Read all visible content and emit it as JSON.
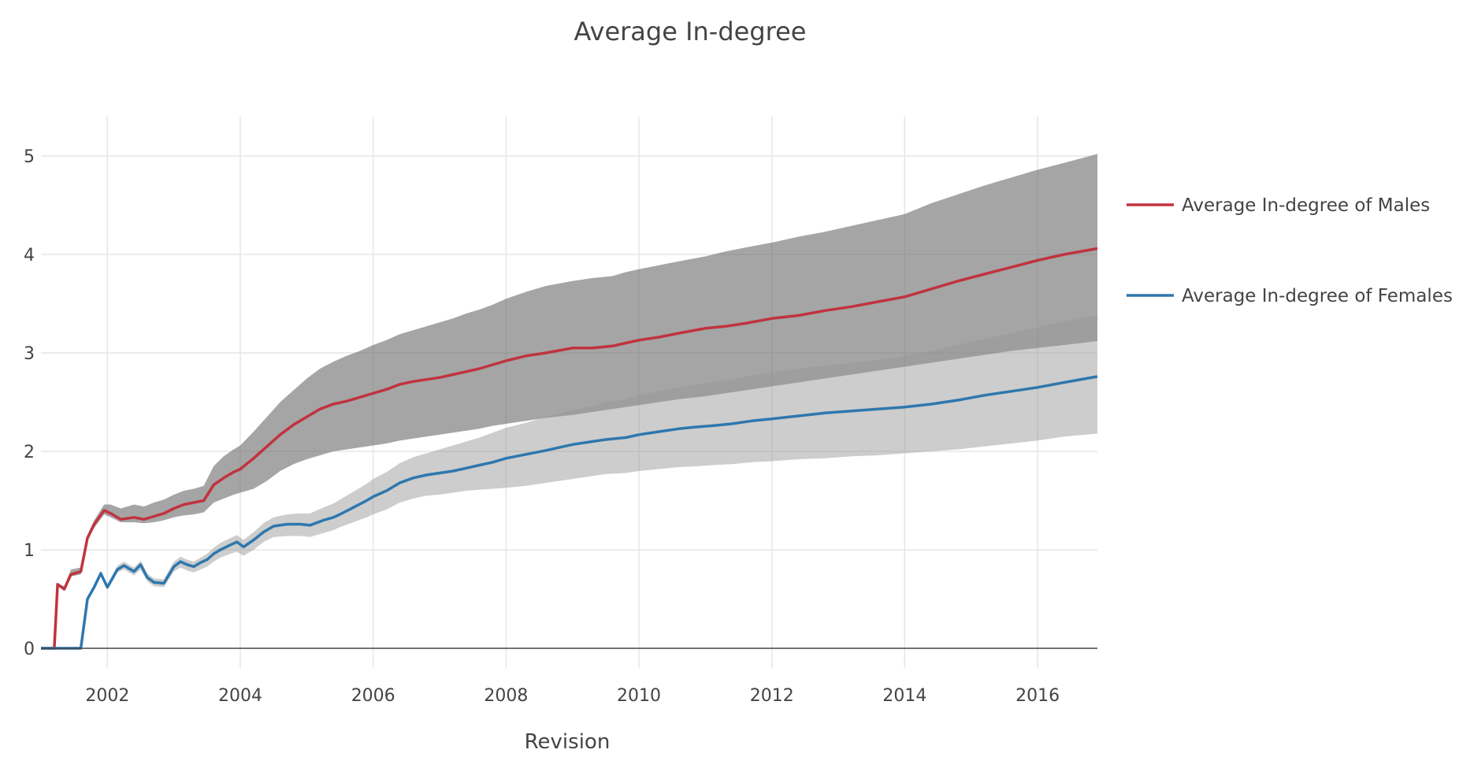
{
  "chart_data": {
    "type": "line",
    "title": "Average In-degree",
    "xlabel": "Revision",
    "ylabel": "",
    "xlim": [
      2001.0,
      2016.9
    ],
    "ylim": [
      -0.2,
      5.4
    ],
    "x_ticks": [
      2002,
      2004,
      2006,
      2008,
      2010,
      2012,
      2014,
      2016
    ],
    "y_ticks": [
      0,
      1,
      2,
      3,
      4,
      5
    ],
    "grid": true,
    "legend_position": "right",
    "series": [
      {
        "name": "Average In-degree of Males",
        "color": "#c0333f",
        "x": [
          2001.0,
          2001.2,
          2001.25,
          2001.35,
          2001.45,
          2001.6,
          2001.7,
          2001.8,
          2001.95,
          2002.05,
          2002.2,
          2002.4,
          2002.55,
          2002.7,
          2002.85,
          2003.0,
          2003.15,
          2003.3,
          2003.45,
          2003.6,
          2003.75,
          2003.9,
          2004.0,
          2004.2,
          2004.4,
          2004.6,
          2004.8,
          2005.0,
          2005.2,
          2005.4,
          2005.6,
          2005.8,
          2006.0,
          2006.2,
          2006.4,
          2006.6,
          2006.8,
          2007.0,
          2007.2,
          2007.4,
          2007.6,
          2007.8,
          2008.0,
          2008.3,
          2008.6,
          2009.0,
          2009.3,
          2009.6,
          2009.8,
          2010.0,
          2010.3,
          2010.6,
          2011.0,
          2011.3,
          2011.6,
          2012.0,
          2012.4,
          2012.8,
          2013.2,
          2013.6,
          2014.0,
          2014.4,
          2014.8,
          2015.2,
          2015.6,
          2016.0,
          2016.4,
          2016.9
        ],
        "values": [
          0.0,
          0.0,
          0.65,
          0.6,
          0.75,
          0.78,
          1.12,
          1.26,
          1.4,
          1.37,
          1.31,
          1.33,
          1.31,
          1.34,
          1.37,
          1.42,
          1.46,
          1.48,
          1.5,
          1.66,
          1.73,
          1.79,
          1.82,
          1.93,
          2.05,
          2.17,
          2.27,
          2.35,
          2.43,
          2.48,
          2.51,
          2.55,
          2.59,
          2.63,
          2.68,
          2.71,
          2.73,
          2.75,
          2.78,
          2.81,
          2.84,
          2.88,
          2.92,
          2.97,
          3.0,
          3.05,
          3.05,
          3.07,
          3.1,
          3.13,
          3.16,
          3.2,
          3.25,
          3.27,
          3.3,
          3.35,
          3.38,
          3.43,
          3.47,
          3.52,
          3.57,
          3.65,
          3.73,
          3.8,
          3.87,
          3.94,
          4.0,
          4.06
        ],
        "band_low": [
          0.0,
          0.0,
          0.65,
          0.6,
          0.73,
          0.75,
          1.09,
          1.22,
          1.36,
          1.33,
          1.28,
          1.28,
          1.27,
          1.28,
          1.3,
          1.33,
          1.35,
          1.36,
          1.38,
          1.48,
          1.52,
          1.56,
          1.58,
          1.62,
          1.7,
          1.8,
          1.87,
          1.92,
          1.96,
          2.0,
          2.02,
          2.04,
          2.06,
          2.08,
          2.11,
          2.13,
          2.15,
          2.17,
          2.19,
          2.21,
          2.23,
          2.26,
          2.28,
          2.31,
          2.34,
          2.37,
          2.4,
          2.43,
          2.45,
          2.47,
          2.5,
          2.53,
          2.56,
          2.59,
          2.62,
          2.66,
          2.7,
          2.74,
          2.78,
          2.82,
          2.86,
          2.9,
          2.94,
          2.98,
          3.02,
          3.05,
          3.08,
          3.12
        ],
        "band_high": [
          0.0,
          0.0,
          0.66,
          0.63,
          0.8,
          0.82,
          1.15,
          1.3,
          1.46,
          1.46,
          1.42,
          1.46,
          1.44,
          1.48,
          1.51,
          1.56,
          1.6,
          1.62,
          1.65,
          1.85,
          1.95,
          2.02,
          2.06,
          2.2,
          2.35,
          2.5,
          2.62,
          2.74,
          2.84,
          2.91,
          2.97,
          3.02,
          3.08,
          3.13,
          3.19,
          3.23,
          3.27,
          3.31,
          3.35,
          3.4,
          3.44,
          3.49,
          3.55,
          3.62,
          3.68,
          3.73,
          3.76,
          3.78,
          3.82,
          3.85,
          3.89,
          3.93,
          3.98,
          4.03,
          4.07,
          4.12,
          4.18,
          4.23,
          4.29,
          4.35,
          4.41,
          4.52,
          4.61,
          4.7,
          4.78,
          4.86,
          4.93,
          5.02
        ]
      },
      {
        "name": "Average In-degree of Females",
        "color": "#2e77ae",
        "x": [
          2001.0,
          2001.6,
          2001.7,
          2001.8,
          2001.9,
          2002.0,
          2002.05,
          2002.15,
          2002.25,
          2002.4,
          2002.5,
          2002.6,
          2002.7,
          2002.85,
          2003.0,
          2003.1,
          2003.2,
          2003.3,
          2003.4,
          2003.5,
          2003.6,
          2003.7,
          2003.85,
          2003.95,
          2004.05,
          2004.2,
          2004.35,
          2004.5,
          2004.7,
          2004.9,
          2005.05,
          2005.25,
          2005.4,
          2005.5,
          2005.7,
          2005.9,
          2006.0,
          2006.2,
          2006.4,
          2006.6,
          2006.8,
          2007.0,
          2007.2,
          2007.4,
          2007.6,
          2007.8,
          2008.0,
          2008.3,
          2008.6,
          2009.0,
          2009.3,
          2009.5,
          2009.8,
          2010.0,
          2010.3,
          2010.6,
          2010.9,
          2011.1,
          2011.4,
          2011.7,
          2012.0,
          2012.4,
          2012.8,
          2013.2,
          2013.6,
          2014.0,
          2014.4,
          2014.8,
          2015.2,
          2015.6,
          2016.0,
          2016.4,
          2016.9
        ],
        "values": [
          0.0,
          0.0,
          0.5,
          0.62,
          0.76,
          0.62,
          0.68,
          0.8,
          0.84,
          0.78,
          0.85,
          0.72,
          0.67,
          0.66,
          0.83,
          0.88,
          0.85,
          0.83,
          0.87,
          0.9,
          0.96,
          1.0,
          1.05,
          1.08,
          1.03,
          1.1,
          1.18,
          1.24,
          1.26,
          1.26,
          1.25,
          1.3,
          1.33,
          1.36,
          1.43,
          1.5,
          1.54,
          1.6,
          1.68,
          1.73,
          1.76,
          1.78,
          1.8,
          1.83,
          1.86,
          1.89,
          1.93,
          1.97,
          2.01,
          2.07,
          2.1,
          2.12,
          2.14,
          2.17,
          2.2,
          2.23,
          2.25,
          2.26,
          2.28,
          2.31,
          2.33,
          2.36,
          2.39,
          2.41,
          2.43,
          2.45,
          2.48,
          2.52,
          2.57,
          2.61,
          2.65,
          2.7,
          2.76
        ],
        "band_low": [
          0.0,
          0.0,
          0.5,
          0.6,
          0.73,
          0.6,
          0.65,
          0.77,
          0.8,
          0.74,
          0.8,
          0.68,
          0.63,
          0.62,
          0.78,
          0.82,
          0.79,
          0.77,
          0.8,
          0.83,
          0.88,
          0.92,
          0.96,
          0.98,
          0.94,
          1.0,
          1.08,
          1.13,
          1.14,
          1.14,
          1.13,
          1.17,
          1.2,
          1.23,
          1.28,
          1.33,
          1.36,
          1.41,
          1.48,
          1.52,
          1.55,
          1.56,
          1.58,
          1.6,
          1.61,
          1.62,
          1.63,
          1.65,
          1.68,
          1.72,
          1.75,
          1.77,
          1.78,
          1.8,
          1.82,
          1.84,
          1.85,
          1.86,
          1.87,
          1.89,
          1.9,
          1.92,
          1.93,
          1.95,
          1.96,
          1.98,
          2.0,
          2.02,
          2.05,
          2.08,
          2.11,
          2.15,
          2.18
        ],
        "band_high": [
          0.0,
          0.0,
          0.52,
          0.65,
          0.79,
          0.65,
          0.71,
          0.84,
          0.88,
          0.82,
          0.89,
          0.76,
          0.71,
          0.7,
          0.88,
          0.93,
          0.9,
          0.88,
          0.92,
          0.96,
          1.02,
          1.07,
          1.12,
          1.15,
          1.1,
          1.18,
          1.27,
          1.33,
          1.36,
          1.37,
          1.37,
          1.43,
          1.47,
          1.51,
          1.59,
          1.67,
          1.72,
          1.79,
          1.88,
          1.94,
          1.98,
          2.02,
          2.06,
          2.1,
          2.14,
          2.19,
          2.24,
          2.29,
          2.35,
          2.42,
          2.46,
          2.5,
          2.53,
          2.57,
          2.61,
          2.65,
          2.68,
          2.7,
          2.73,
          2.77,
          2.8,
          2.84,
          2.87,
          2.9,
          2.93,
          2.97,
          3.02,
          3.08,
          3.14,
          3.2,
          3.26,
          3.32,
          3.38
        ]
      }
    ]
  }
}
